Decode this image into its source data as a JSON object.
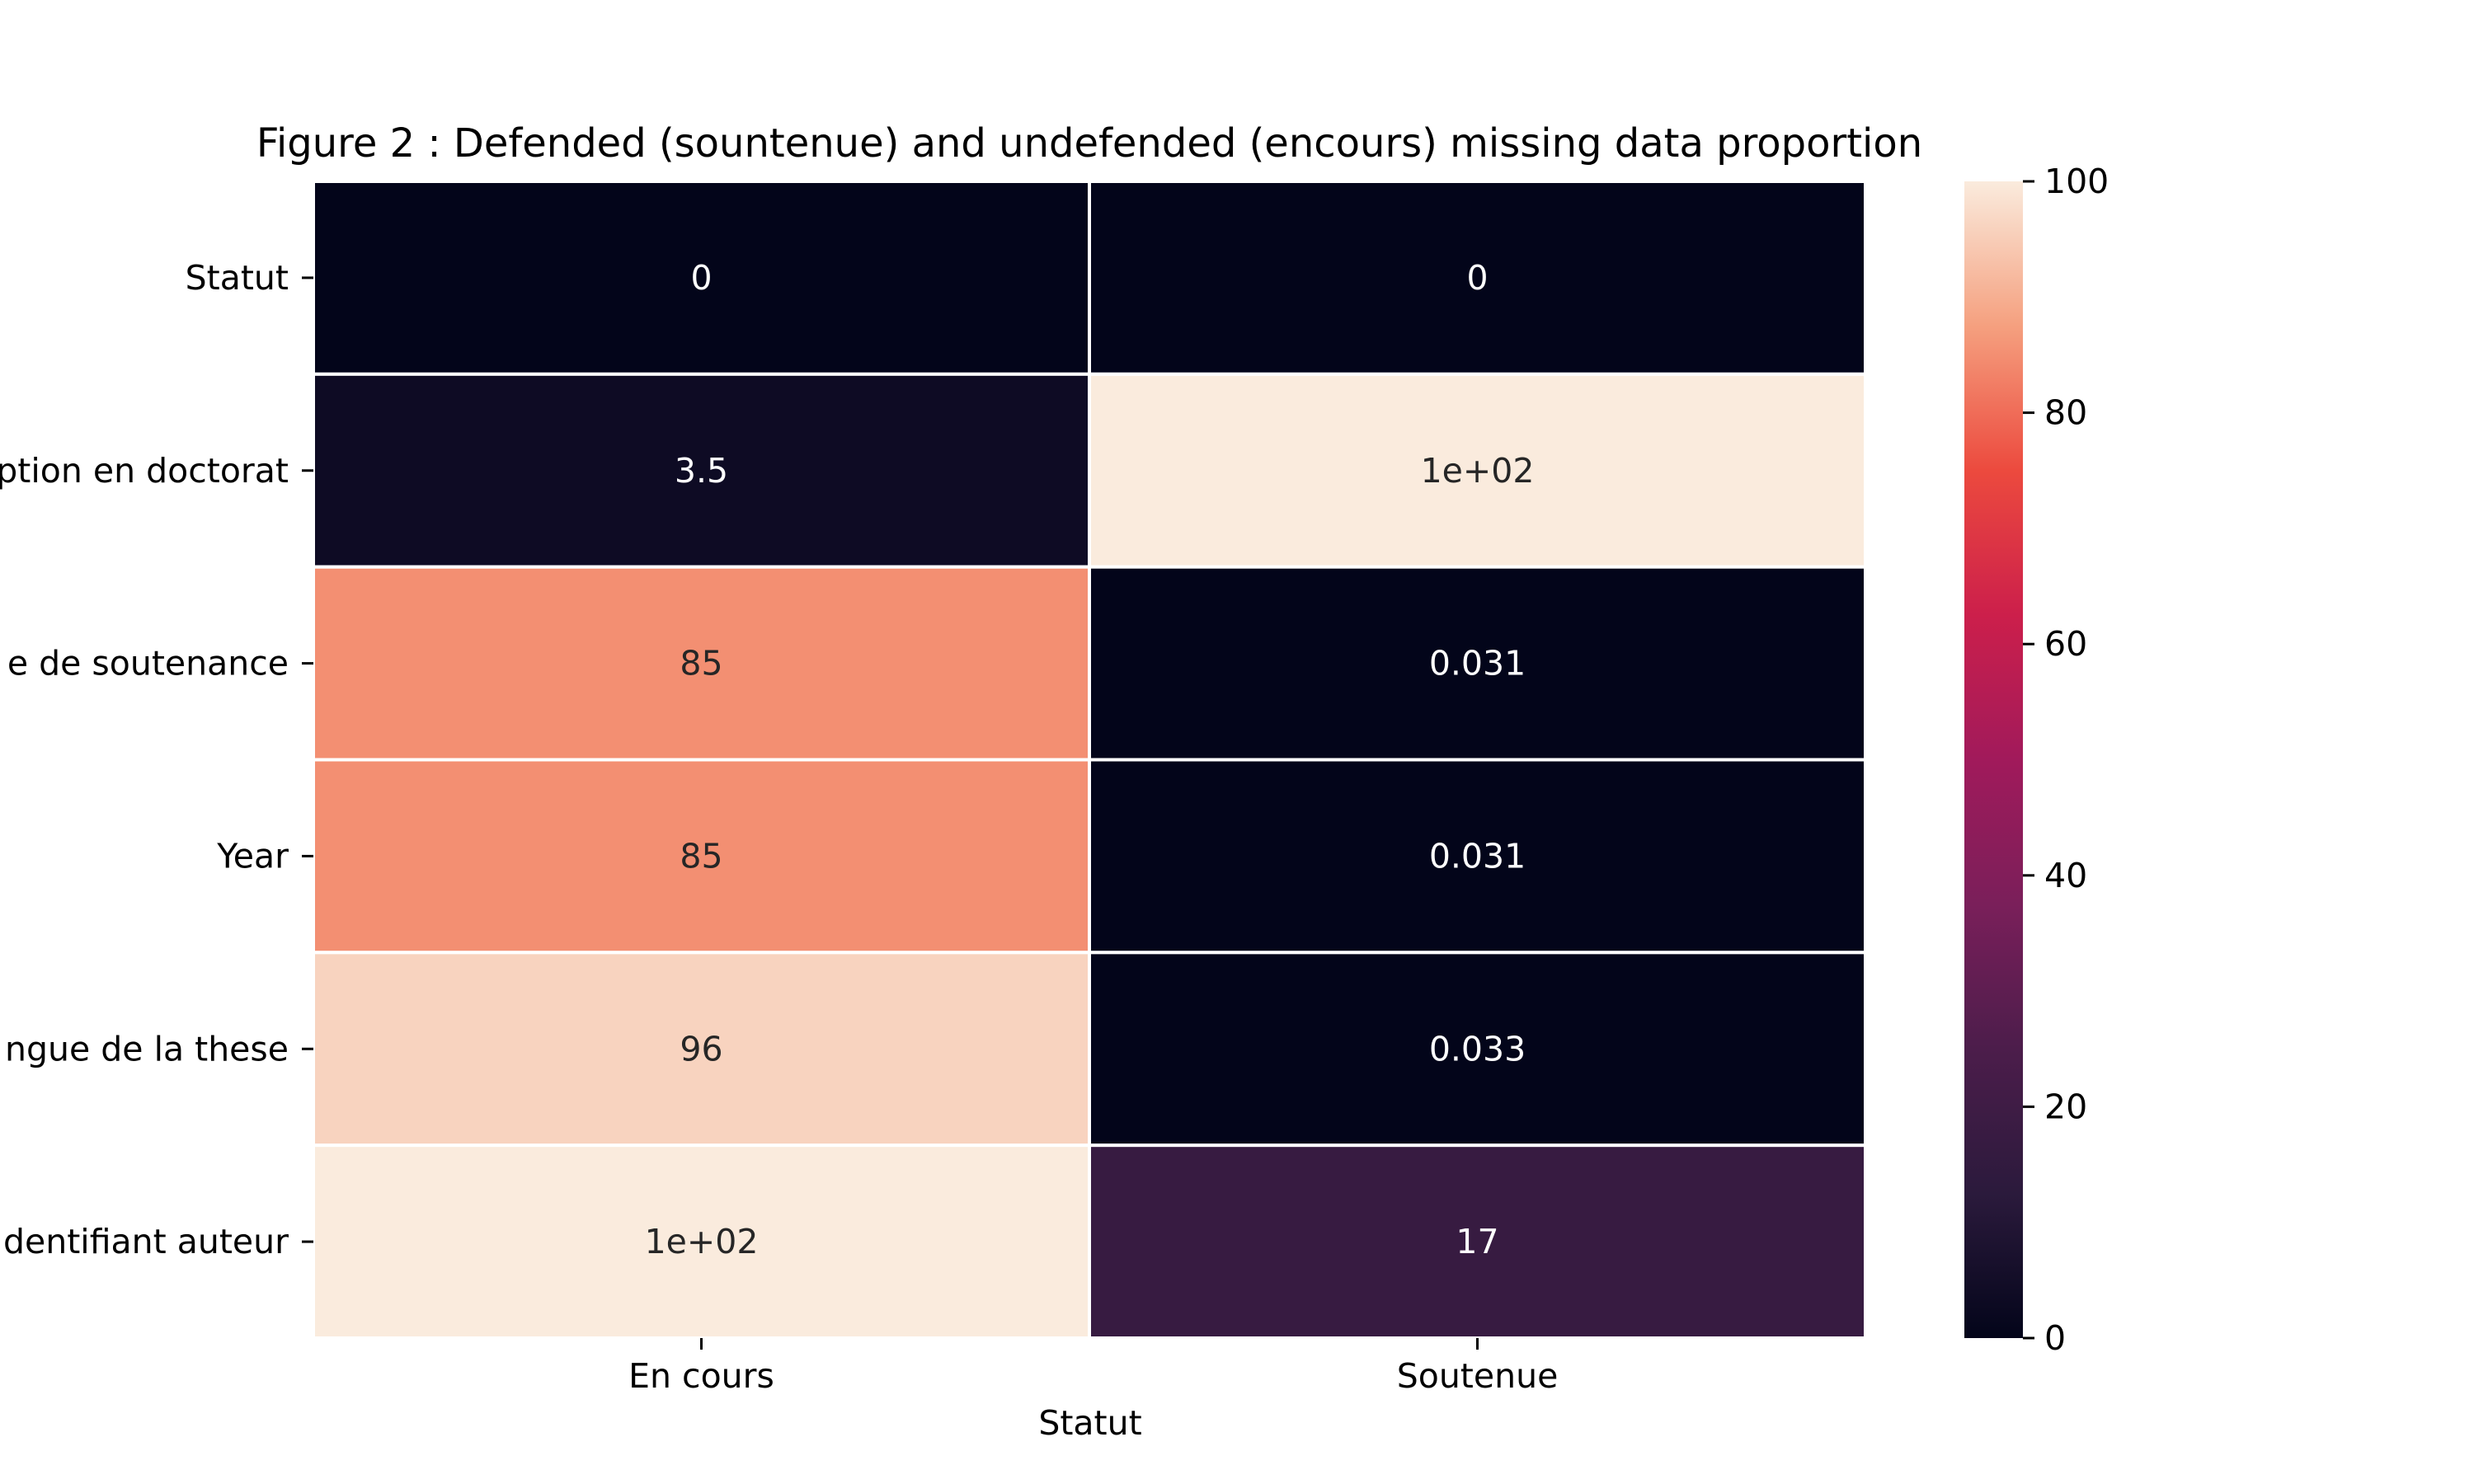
{
  "chart_data": {
    "type": "heatmap",
    "title": "Figure 2 : Defended (sountenue) and undefended (encours) missing data proportion",
    "xlabel": "Statut",
    "ylabel": "",
    "columns": [
      "En cours",
      "Soutenue"
    ],
    "rows": [
      "Statut",
      "Date de premiere inscription en doctorat",
      "Date de soutenance",
      "Year",
      "Langue de la these",
      "Identifiant auteur"
    ],
    "row_labels_visible": [
      "Statut",
      "ption en doctorat",
      "e de soutenance",
      "Year",
      "ngue de la these",
      "dentifiant auteur"
    ],
    "values": [
      [
        0,
        0
      ],
      [
        3.5,
        100
      ],
      [
        85,
        0.031
      ],
      [
        85,
        0.031
      ],
      [
        96,
        0.033
      ],
      [
        100,
        17
      ]
    ],
    "annotations": [
      [
        "0",
        "0"
      ],
      [
        "3.5",
        "1e+02"
      ],
      [
        "85",
        "0.031"
      ],
      [
        "85",
        "0.031"
      ],
      [
        "96",
        "0.033"
      ],
      [
        "1e+02",
        "17"
      ]
    ],
    "colormap": "rocket",
    "vmin": 0,
    "vmax": 100,
    "colorbar_ticks": [
      0,
      20,
      40,
      60,
      80,
      100
    ],
    "colorbar_tick_labels": [
      "0",
      "20",
      "40",
      "60",
      "80",
      "100"
    ]
  }
}
